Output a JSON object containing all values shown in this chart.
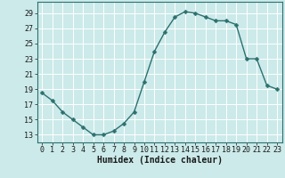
{
  "x": [
    0,
    1,
    2,
    3,
    4,
    5,
    6,
    7,
    8,
    9,
    10,
    11,
    12,
    13,
    14,
    15,
    16,
    17,
    18,
    19,
    20,
    21,
    22,
    23
  ],
  "y": [
    18.5,
    17.5,
    16,
    15,
    14,
    13,
    13,
    13.5,
    14.5,
    16,
    20,
    24,
    26.5,
    28.5,
    29.2,
    29,
    28.5,
    28,
    28,
    27.5,
    23,
    23,
    19.5,
    19
  ],
  "line_color": "#2d7070",
  "marker_color": "#2d7070",
  "bg_color": "#cceaea",
  "grid_color": "#ffffff",
  "xlabel": "Humidex (Indice chaleur)",
  "xlim": [
    -0.5,
    23.5
  ],
  "ylim": [
    12,
    30.5
  ],
  "yticks": [
    13,
    15,
    17,
    19,
    21,
    23,
    25,
    27,
    29
  ],
  "xticks": [
    0,
    1,
    2,
    3,
    4,
    5,
    6,
    7,
    8,
    9,
    10,
    11,
    12,
    13,
    14,
    15,
    16,
    17,
    18,
    19,
    20,
    21,
    22,
    23
  ],
  "xtick_labels": [
    "0",
    "1",
    "2",
    "3",
    "4",
    "5",
    "6",
    "7",
    "8",
    "9",
    "10",
    "11",
    "12",
    "13",
    "14",
    "15",
    "16",
    "17",
    "18",
    "19",
    "20",
    "21",
    "22",
    "23"
  ],
  "line_width": 1.0,
  "marker_size": 2.5,
  "tick_fontsize": 6.0,
  "xlabel_fontsize": 7.0
}
